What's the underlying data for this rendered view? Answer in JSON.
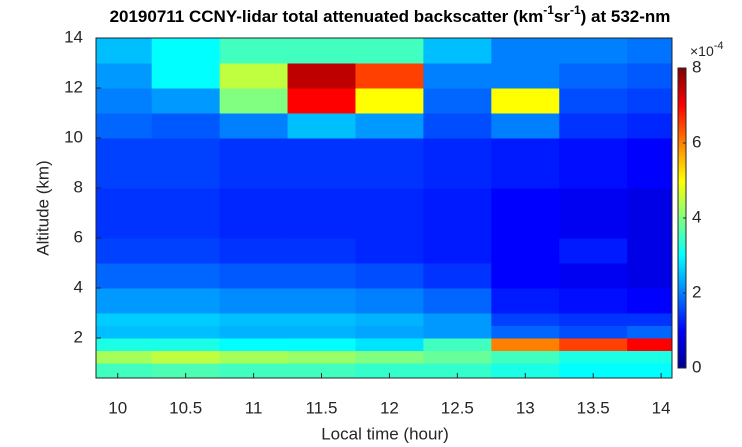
{
  "chart_data": {
    "type": "heatmap",
    "title_parts": [
      {
        "text": "20190711 CCNY-lidar total attenuated backscatter (km"
      },
      {
        "text": "-1",
        "sup": true
      },
      {
        "text": "sr"
      },
      {
        "text": "-1",
        "sup": true
      },
      {
        "text": ") at 532-nm"
      }
    ],
    "x_label": "Local time (hour)",
    "y_label": "Altitude (km)",
    "xlim": [
      9.84,
      14.08
    ],
    "ylim": [
      0.4,
      14
    ],
    "xticks": [
      10,
      10.5,
      11,
      11.5,
      12,
      12.5,
      13,
      13.5,
      14
    ],
    "yticks": [
      2,
      4,
      6,
      8,
      10,
      12,
      14
    ],
    "x_edges": [
      9.84,
      10.25,
      10.75,
      11.25,
      11.75,
      12.25,
      12.75,
      13.25,
      13.75,
      14.08
    ],
    "y_edges": [
      0.4,
      1,
      1.5,
      2,
      2.5,
      3,
      4,
      5,
      6,
      8,
      10,
      11,
      12,
      13,
      14
    ],
    "values": [
      [
        3.5,
        3.6,
        3.5,
        3.5,
        3.4,
        3.4,
        3.2,
        3.0,
        3.0
      ],
      [
        4.3,
        4.5,
        4.3,
        4.2,
        4.0,
        3.8,
        3.5,
        3.2,
        3.2
      ],
      [
        3.2,
        3.2,
        3.0,
        3.0,
        2.8,
        3.5,
        6.0,
        6.5,
        7.0
      ],
      [
        2.5,
        2.5,
        2.4,
        2.4,
        2.3,
        2.2,
        1.8,
        1.6,
        1.8
      ],
      [
        2.6,
        2.6,
        2.5,
        2.5,
        2.4,
        2.2,
        1.5,
        1.4,
        1.4
      ],
      [
        2.2,
        2.2,
        2.1,
        2.1,
        2.0,
        1.8,
        1.2,
        1.1,
        1.0
      ],
      [
        1.8,
        1.8,
        1.7,
        1.7,
        1.6,
        1.4,
        1.0,
        0.9,
        0.8
      ],
      [
        1.5,
        1.5,
        1.4,
        1.4,
        1.3,
        1.2,
        1.0,
        1.2,
        0.8
      ],
      [
        1.4,
        1.4,
        1.3,
        1.3,
        1.3,
        1.2,
        1.0,
        0.9,
        0.8
      ],
      [
        1.5,
        1.5,
        1.4,
        1.4,
        1.4,
        1.3,
        1.2,
        1.1,
        1.0
      ],
      [
        1.8,
        1.7,
        2.0,
        2.5,
        2.2,
        1.6,
        2.0,
        1.4,
        1.3
      ],
      [
        2.0,
        2.2,
        4.0,
        7.0,
        5.0,
        1.8,
        5.0,
        1.6,
        1.5
      ],
      [
        2.2,
        3.0,
        4.5,
        7.5,
        6.5,
        2.0,
        2.0,
        1.8,
        1.7
      ],
      [
        2.5,
        3.0,
        3.5,
        3.5,
        3.5,
        2.5,
        2.0,
        2.0,
        1.9
      ]
    ],
    "colormap": "jet",
    "clim": [
      0,
      8
    ],
    "colorbar_ticks": [
      0,
      2,
      4,
      6,
      8
    ],
    "colorbar_multiplier_parts": [
      {
        "text": "×10"
      },
      {
        "text": "-4",
        "sup": true
      }
    ]
  }
}
